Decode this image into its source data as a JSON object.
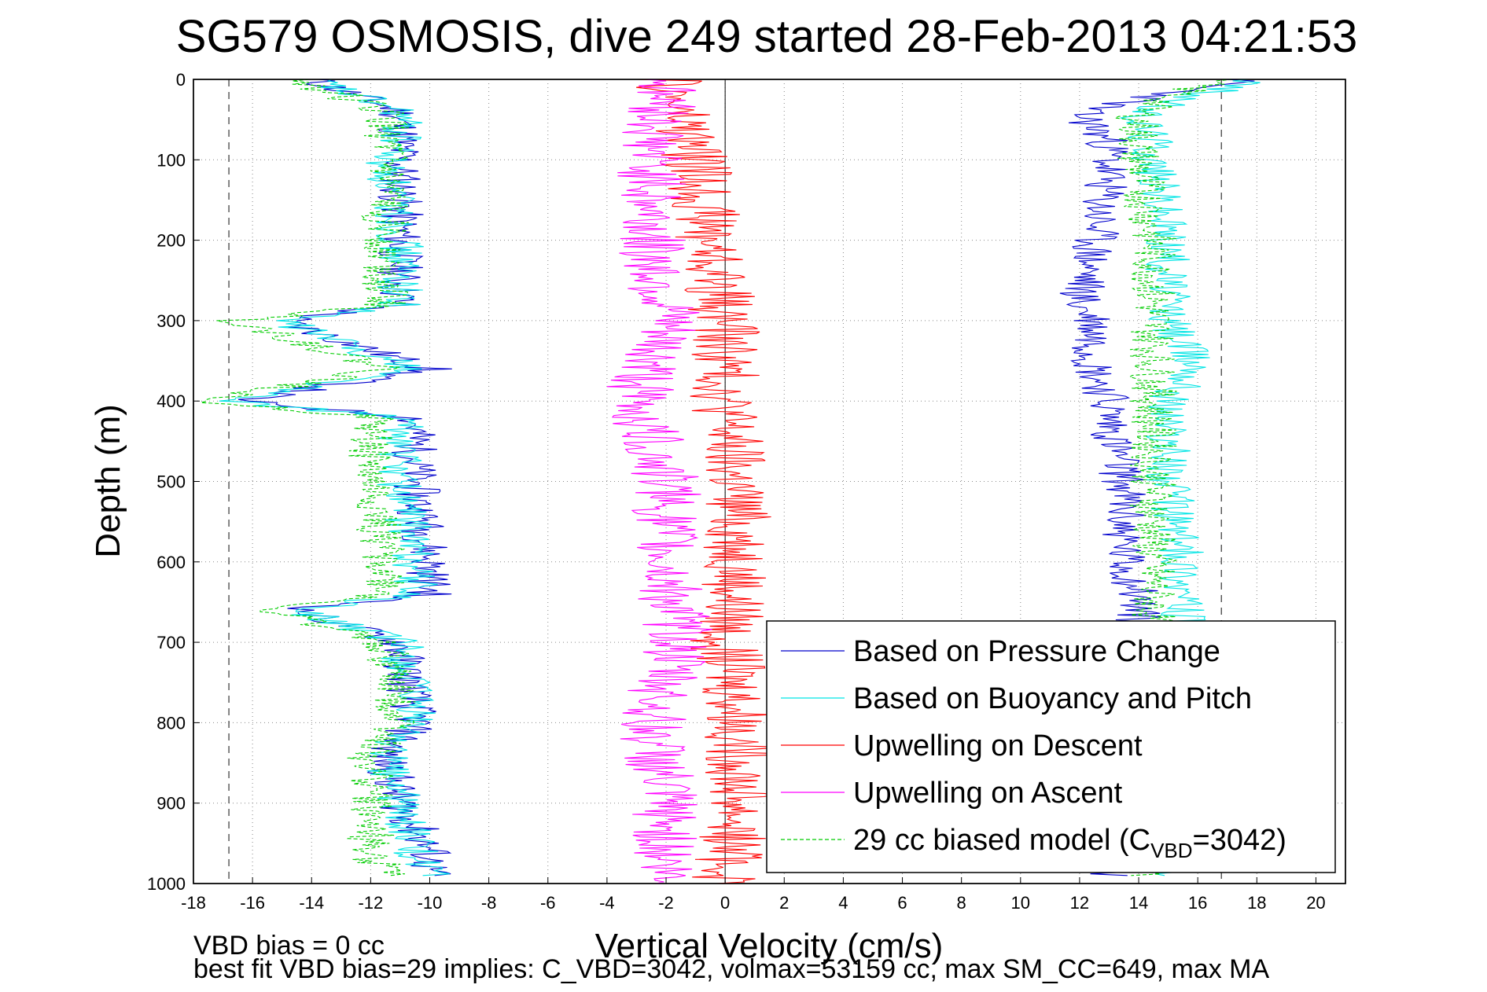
{
  "chart_data": {
    "type": "line",
    "title": "SG579 OSMOSIS, dive 249 started 28-Feb-2013 04:21:53",
    "xlabel": "Vertical Velocity (cm/s)",
    "ylabel": "Depth (m)",
    "xlim": [
      -18,
      21
    ],
    "ylim": [
      0,
      1000
    ],
    "y_reversed": true,
    "xticks": [
      -18,
      -16,
      -14,
      -12,
      -10,
      -8,
      -6,
      -4,
      -2,
      0,
      2,
      4,
      6,
      8,
      10,
      12,
      14,
      16,
      18,
      20
    ],
    "yticks": [
      0,
      100,
      200,
      300,
      400,
      500,
      600,
      700,
      800,
      900,
      1000
    ],
    "grid": true,
    "legend_position": "bottom-right",
    "reference_lines": {
      "dashed_x": [
        -16.8,
        16.8
      ],
      "solid_x": [
        0
      ]
    },
    "series": [
      {
        "name": "Based on Pressure Change",
        "color": "#0000cc",
        "style": "solid",
        "depth": [
          0,
          40,
          80,
          100,
          200,
          280,
          300,
          360,
          400,
          420,
          500,
          600,
          640,
          660,
          700,
          800,
          840,
          900,
          960,
          990
        ],
        "velocity_descent": [
          -14,
          -11,
          -11,
          -11,
          -11,
          -11,
          -15,
          -10,
          -16.5,
          -10.5,
          -10.5,
          -10,
          -10,
          -14.5,
          -11,
          -10.5,
          -11.5,
          -11,
          -10,
          -10
        ],
        "velocity_ascent": [
          17.5,
          12,
          13,
          13,
          12.5,
          12,
          12.5,
          12.5,
          13,
          13,
          13.5,
          13.5,
          14,
          14,
          14,
          14,
          14,
          14,
          13.5,
          13
        ]
      },
      {
        "name": "Based on Buoyancy and Pitch",
        "color": "#00e5e5",
        "style": "solid",
        "depth": [
          0,
          40,
          80,
          100,
          200,
          280,
          300,
          360,
          400,
          420,
          500,
          600,
          640,
          660,
          700,
          800,
          840,
          900,
          960,
          990
        ],
        "velocity_descent": [
          -14,
          -11,
          -11,
          -11.5,
          -11,
          -11,
          -15,
          -10.5,
          -17,
          -11,
          -11,
          -10.5,
          -10.5,
          -14.5,
          -11,
          -10.5,
          -11.5,
          -11,
          -10.5,
          -10
        ],
        "velocity_ascent": [
          18,
          14,
          14.5,
          14.5,
          15,
          15,
          15,
          16,
          15,
          15,
          15,
          15.5,
          15.5,
          15.5,
          15.5,
          15.5,
          15,
          15,
          15,
          15
        ]
      },
      {
        "name": "Upwelling on Descent",
        "color": "#ff0000",
        "style": "solid",
        "depth": [
          0,
          100,
          200,
          300,
          400,
          500,
          600,
          700,
          800,
          900,
          1000
        ],
        "values": [
          -2,
          -1,
          -0.5,
          0,
          0,
          0.3,
          0.5,
          0,
          0.5,
          0.5,
          0
        ]
      },
      {
        "name": "Upwelling on Ascent",
        "color": "#ff00ff",
        "style": "solid",
        "depth": [
          0,
          100,
          200,
          300,
          400,
          500,
          600,
          700,
          800,
          900,
          1000
        ],
        "values": [
          -2,
          -2.5,
          -2.5,
          -2,
          -3,
          -2,
          -2,
          -1.5,
          -2.5,
          -2,
          -2
        ]
      },
      {
        "name": "29 cc biased model (C_VBD=3042)",
        "color": "#00cc00",
        "style": "dashed",
        "depth": [
          0,
          40,
          80,
          100,
          200,
          280,
          300,
          360,
          400,
          420,
          500,
          600,
          640,
          660,
          700,
          800,
          840,
          900,
          960,
          990
        ],
        "velocity_descent": [
          -14.5,
          -11.5,
          -11.5,
          -11.5,
          -11.5,
          -11.5,
          -16.5,
          -11.5,
          -17.5,
          -12,
          -12,
          -11.5,
          -11.5,
          -15.5,
          -11.5,
          -11,
          -12,
          -12,
          -12,
          -11.5
        ],
        "velocity_ascent": [
          16.5,
          14,
          14,
          14,
          14.5,
          14.5,
          14.5,
          14.5,
          14.5,
          14.5,
          14.5,
          14.5,
          14.5,
          14.5,
          14.5,
          14.5,
          14.5,
          14.5,
          14.5,
          14.5
        ]
      }
    ]
  },
  "legend": {
    "items": [
      {
        "label": "Based on Pressure Change",
        "color": "#0000cc",
        "dashed": false
      },
      {
        "label": "Based on Buoyancy and Pitch",
        "color": "#00e5e5",
        "dashed": false
      },
      {
        "label": "Upwelling on Descent",
        "color": "#ff0000",
        "dashed": false
      },
      {
        "label": "Upwelling on Ascent",
        "color": "#ff00ff",
        "dashed": false
      },
      {
        "label_main": "29 cc biased model (C",
        "label_sub": "VBD",
        "label_tail": "=3042)",
        "color": "#00cc00",
        "dashed": true
      }
    ]
  },
  "footer": {
    "line1": "VBD bias = 0 cc",
    "line2": "best fit VBD bias=29 implies: C_VBD=3042, volmax=53159 cc, max SM_CC=649, max MA"
  }
}
